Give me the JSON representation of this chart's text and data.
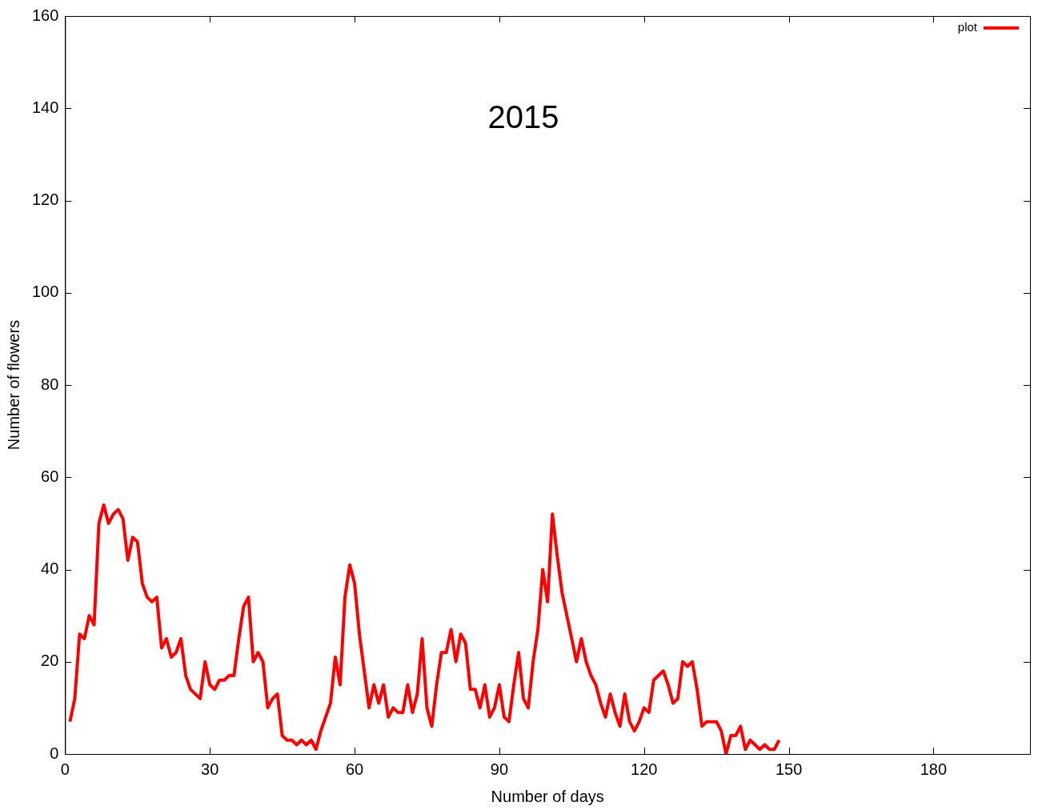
{
  "chart_data": {
    "type": "line",
    "title": "2015",
    "xlabel": "Number of days",
    "ylabel": "Number of flowers",
    "xlim": [
      0,
      200
    ],
    "xticks": [
      0,
      30,
      60,
      90,
      120,
      150,
      180
    ],
    "ylim": [
      0,
      160
    ],
    "yticks": [
      0,
      20,
      40,
      60,
      80,
      100,
      120,
      140,
      160
    ],
    "grid": false,
    "legend": "top right",
    "marker": "none",
    "line_style": "solid",
    "x": [
      1,
      2,
      3,
      4,
      5,
      6,
      7,
      8,
      9,
      10,
      11,
      12,
      13,
      14,
      15,
      16,
      17,
      18,
      19,
      20,
      21,
      22,
      23,
      24,
      25,
      26,
      27,
      28,
      29,
      30,
      31,
      32,
      33,
      34,
      35,
      36,
      37,
      38,
      39,
      40,
      41,
      42,
      43,
      44,
      45,
      46,
      47,
      48,
      49,
      50,
      51,
      52,
      53,
      54,
      55,
      56,
      57,
      58,
      59,
      60,
      61,
      62,
      63,
      64,
      65,
      66,
      67,
      68,
      69,
      70,
      71,
      72,
      73,
      74,
      75,
      76,
      77,
      78,
      79,
      80,
      81,
      82,
      83,
      84,
      85,
      86,
      87,
      88,
      89,
      90,
      91,
      92,
      93,
      94,
      95,
      96,
      97,
      98,
      99,
      100,
      101,
      102,
      103,
      104,
      105,
      106,
      107,
      108,
      109,
      110,
      111,
      112,
      113,
      114,
      115,
      116,
      117,
      118,
      119,
      120,
      121,
      122,
      123,
      124,
      125,
      126,
      127,
      128,
      129,
      130,
      131,
      132,
      133,
      134,
      135,
      136,
      137,
      138,
      139,
      140,
      141,
      142,
      143,
      144,
      145,
      146,
      147,
      148
    ],
    "series": [
      {
        "name": "plot",
        "color": "#ff0000",
        "values": [
          7,
          12,
          26,
          25,
          30,
          28,
          50,
          54,
          50,
          52,
          53,
          51,
          42,
          47,
          46,
          37,
          34,
          33,
          34,
          23,
          25,
          21,
          22,
          25,
          17,
          14,
          13,
          12,
          20,
          15,
          14,
          16,
          16,
          17,
          17,
          25,
          32,
          34,
          20,
          22,
          20,
          10,
          12,
          13,
          4,
          3,
          3,
          2,
          3,
          2,
          3,
          1,
          5,
          8,
          11,
          21,
          15,
          34,
          41,
          37,
          26,
          18,
          10,
          15,
          11,
          15,
          8,
          10,
          9,
          9,
          15,
          9,
          13,
          25,
          10,
          6,
          15,
          22,
          22,
          27,
          20,
          26,
          24,
          14,
          14,
          10,
          15,
          8,
          10,
          15,
          8,
          7,
          15,
          22,
          12,
          10,
          20,
          27,
          40,
          33,
          52,
          43,
          35,
          30,
          25,
          20,
          25,
          20,
          17,
          15,
          11,
          8,
          13,
          9,
          6,
          13,
          7,
          5,
          7,
          10,
          9,
          16,
          17,
          18,
          15,
          11,
          12,
          20,
          19,
          20,
          14,
          6,
          7,
          7,
          7,
          5,
          0,
          4,
          4,
          6,
          1,
          3,
          2,
          1,
          2,
          1,
          1,
          3
        ]
      }
    ]
  }
}
